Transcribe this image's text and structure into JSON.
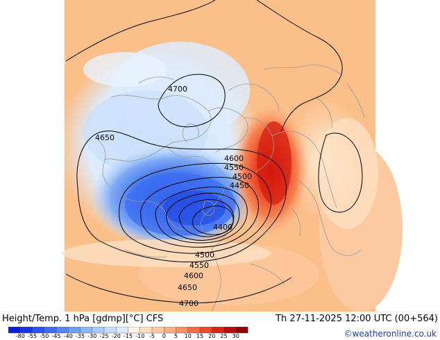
{
  "caption": {
    "title": "Height/Temp. 1 hPa [gdmp][°C] CFS",
    "valid_time": "Th 27-11-2025 12:00 UTC (00+564)",
    "credit": "©weatheronline.co.uk"
  },
  "colorbar": {
    "ticks": [
      "-80",
      "-55",
      "-50",
      "-45",
      "-40",
      "-35",
      "-30",
      "-25",
      "-20",
      "-15",
      "-10",
      "-5",
      "0",
      "5",
      "10",
      "15",
      "20",
      "25",
      "30"
    ],
    "colors": [
      "#0a1fd6",
      "#1636e6",
      "#2a52ee",
      "#3e6cf2",
      "#5486f4",
      "#6e9ff6",
      "#8bb6f8",
      "#a8cafa",
      "#c4dcfb",
      "#ddecfd",
      "#fff3e2",
      "#fde0c2",
      "#fcc9a0",
      "#fbb083",
      "#f99066",
      "#f46d47",
      "#ec4a2c",
      "#d92416",
      "#b80e0b",
      "#8e0605"
    ]
  },
  "contour_labels": [
    "4700",
    "4650",
    "4600",
    "4550",
    "4500",
    "4450",
    "4400",
    "4500",
    "4550",
    "4600",
    "4650",
    "4700"
  ],
  "colors": {
    "background_warm": "#fbbf8a",
    "cold_core": "#2c5de8",
    "warm_core": "#d41e10",
    "credit_text": "#1a3fa8"
  }
}
